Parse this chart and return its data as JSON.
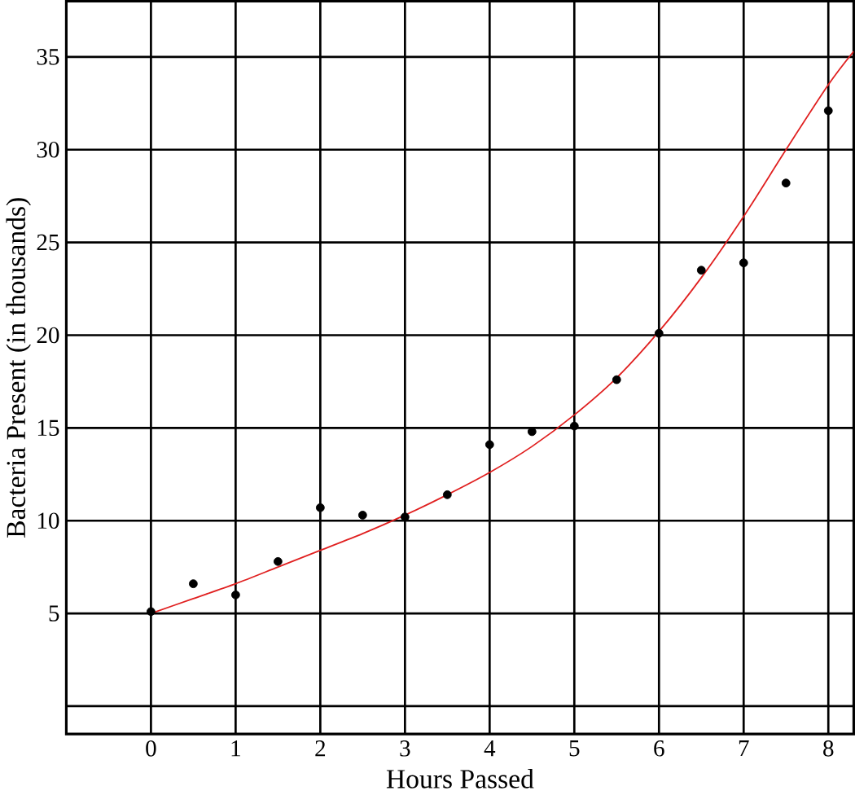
{
  "chart_data": {
    "type": "scatter",
    "xlabel": "Hours Passed",
    "ylabel": "Bacteria Present (in thousands)",
    "xlim": [
      -1,
      8.3
    ],
    "ylim": [
      -1.5,
      38
    ],
    "xticks": [
      0,
      1,
      2,
      3,
      4,
      5,
      6,
      7,
      8
    ],
    "yticks": [
      {
        "value": 0,
        "label": null
      },
      5,
      10,
      15,
      20,
      25,
      30,
      35
    ],
    "grid": true,
    "series": [
      {
        "marker": "circle",
        "color": "#000000",
        "x": [
          0,
          0.5,
          1,
          1.5,
          2,
          2.5,
          3,
          3.5,
          4,
          4.5,
          5,
          5.5,
          6,
          6.5,
          7,
          7.5,
          8
        ],
        "values": [
          5.1,
          6.6,
          6.0,
          7.8,
          10.7,
          10.3,
          10.2,
          11.4,
          14.1,
          14.8,
          15.1,
          17.6,
          20.1,
          23.5,
          23.9,
          28.2,
          32.1
        ]
      },
      {
        "type": "line",
        "marker": "none",
        "color": "#e02020",
        "x": [
          0,
          0.5,
          1,
          1.5,
          2,
          2.5,
          3,
          3.5,
          4,
          4.5,
          5,
          5.5,
          6,
          6.5,
          7,
          7.5,
          8,
          8.3
        ],
        "values": [
          5,
          5.8,
          6.6,
          7.5,
          8.4,
          9.3,
          10.3,
          11.4,
          12.6,
          14.0,
          15.7,
          17.7,
          20.2,
          23.1,
          26.4,
          30.0,
          33.5,
          35.3
        ]
      }
    ]
  }
}
